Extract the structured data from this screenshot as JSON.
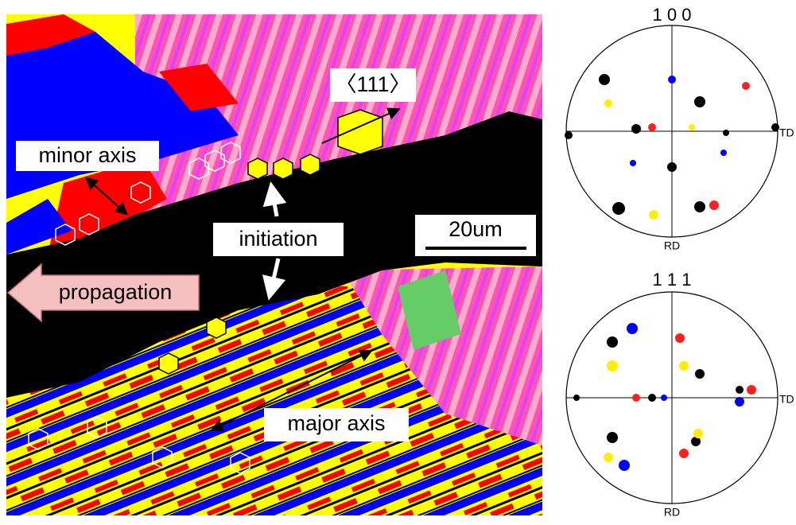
{
  "map": {
    "labels": {
      "direction": "〈111〉",
      "minor": "minor axis",
      "initiation": "initiation",
      "scale": "20um",
      "propagation": "propagation",
      "major": "major axis"
    }
  },
  "pole_figures": [
    {
      "title": "1 0 0",
      "side_label": "TD",
      "bottom_label": "RD"
    },
    {
      "title": "1 1 1",
      "side_label": "TD",
      "bottom_label": "RD"
    }
  ]
}
